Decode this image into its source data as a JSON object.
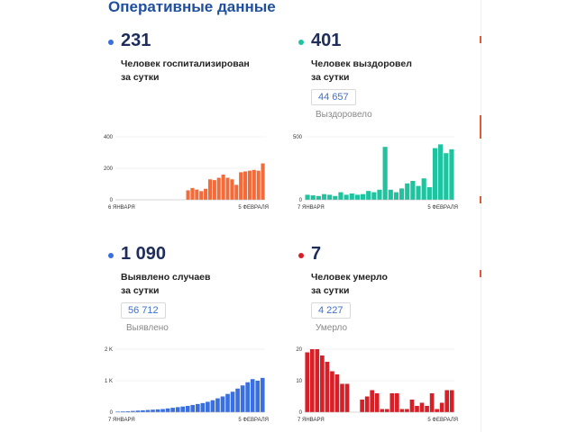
{
  "page": {
    "title": "Оперативные данные"
  },
  "panels": [
    {
      "dot_color": "#3a6fe0",
      "number": "231",
      "label_line1": "Человек госпитализирован",
      "label_line2": "за сутки",
      "total": "",
      "total_label": ""
    },
    {
      "dot_color": "#1fc3a0",
      "number": "401",
      "label_line1": "Человек выздоровел",
      "label_line2": "за сутки",
      "total": "44 657",
      "total_label": "Выздоровело"
    },
    {
      "dot_color": "#3a6fe0",
      "number": "1 090",
      "label_line1": "Выявлено случаев",
      "label_line2": "за сутки",
      "total": "56 712",
      "total_label": "Выявлено"
    },
    {
      "dot_color": "#d61f26",
      "number": "7",
      "label_line1": "Человек умерло",
      "label_line2": "за сутки",
      "total": "4 227",
      "total_label": "Умерло"
    }
  ],
  "chart_data": [
    {
      "type": "bar",
      "title": "",
      "color": "#f26b3a",
      "x_start_label": "6 ЯНВАРЯ",
      "x_end_label": "5 ФЕВРАЛЯ",
      "yticks": [
        "0",
        "200",
        "400"
      ],
      "ytick_values": [
        0,
        200,
        400
      ],
      "ylim": [
        0,
        400
      ],
      "values": [
        0,
        0,
        0,
        0,
        0,
        0,
        0,
        0,
        0,
        0,
        0,
        0,
        0,
        0,
        0,
        0,
        60,
        75,
        65,
        55,
        70,
        130,
        125,
        140,
        160,
        140,
        130,
        95,
        175,
        180,
        185,
        190,
        185,
        231
      ]
    },
    {
      "type": "bar",
      "title": "",
      "color": "#1fc3a0",
      "x_start_label": "7 ЯНВАРЯ",
      "x_end_label": "5 ФЕВРАЛЯ",
      "yticks": [
        "0",
        "500"
      ],
      "ytick_values": [
        0,
        500
      ],
      "ylim": [
        0,
        500
      ],
      "values": [
        40,
        35,
        30,
        45,
        40,
        30,
        60,
        40,
        50,
        40,
        45,
        70,
        60,
        80,
        420,
        80,
        60,
        90,
        130,
        150,
        110,
        170,
        100,
        410,
        440,
        370,
        401
      ]
    },
    {
      "type": "bar",
      "title": "",
      "color": "#3a6fe0",
      "x_start_label": "7 ЯНВАРЯ",
      "x_end_label": "5 ФЕВРАЛЯ",
      "yticks": [
        "0",
        "1 K",
        "2 K"
      ],
      "ytick_values": [
        0,
        1000,
        2000
      ],
      "ylim": [
        0,
        2000
      ],
      "values": [
        20,
        25,
        30,
        40,
        50,
        60,
        70,
        80,
        90,
        100,
        120,
        140,
        160,
        180,
        200,
        230,
        260,
        290,
        330,
        380,
        440,
        500,
        580,
        650,
        750,
        850,
        950,
        1050,
        1000,
        1090
      ]
    },
    {
      "type": "bar",
      "title": "",
      "color": "#d61f26",
      "x_start_label": "7 ЯНВАРЯ",
      "x_end_label": "5 ФЕВРАЛЯ",
      "yticks": [
        "0",
        "10",
        "20"
      ],
      "ytick_values": [
        0,
        10,
        20
      ],
      "ylim": [
        0,
        20
      ],
      "values": [
        19,
        20,
        20,
        18,
        16,
        13,
        12,
        9,
        9,
        0,
        0,
        4,
        5,
        7,
        6,
        1,
        1,
        6,
        6,
        1,
        1,
        4,
        2,
        3,
        2,
        6,
        1,
        3,
        7,
        7
      ]
    }
  ]
}
